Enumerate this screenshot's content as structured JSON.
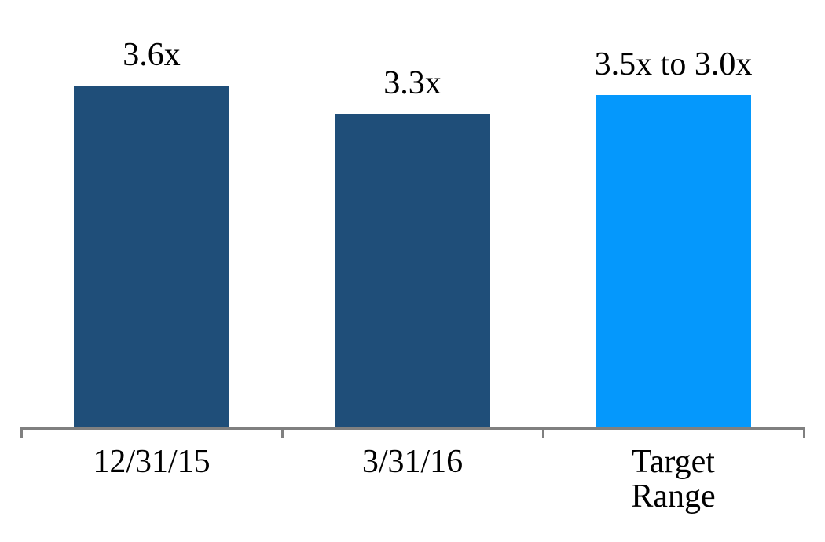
{
  "chart_data": {
    "type": "bar",
    "categories": [
      "12/31/15",
      "3/31/16",
      "Target Range"
    ],
    "values": [
      3.6,
      3.3,
      3.5
    ],
    "value_labels": [
      "3.6x",
      "3.3x",
      "3.5x to 3.0x"
    ],
    "series_colors": [
      "#1F4E79",
      "#1F4E79",
      "#0598FC"
    ],
    "title": "",
    "xlabel": "",
    "ylabel": "",
    "ylim": [
      0,
      4.5
    ],
    "grid": false,
    "legend": false,
    "axis_color": "#808080",
    "text_color": "#000000"
  }
}
